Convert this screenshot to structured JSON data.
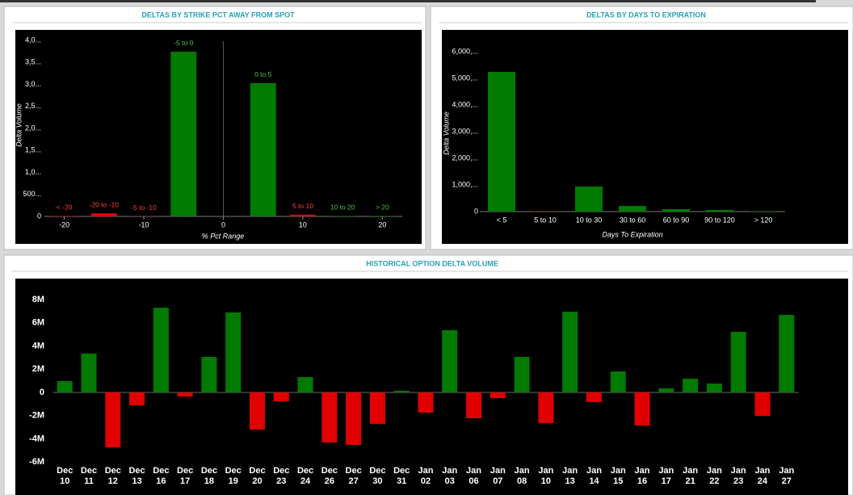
{
  "chart_data": [
    {
      "type": "bar",
      "title": "DELTAS BY STRIKE PCT AWAY FROM SPOT",
      "x": [
        -20,
        -15,
        -10,
        -5,
        5,
        10,
        15,
        20
      ],
      "labels": [
        "< -20",
        "-20 to -10",
        "-5 to -10",
        "-5 to 0",
        "0 to 5",
        "5 to 10",
        "10 to 20",
        "> 20"
      ],
      "values": [
        10,
        70,
        5,
        3743,
        3028,
        40,
        10,
        10
      ],
      "colors": [
        "#e00000",
        "#e00000",
        "#e00000",
        "#007a00",
        "#007a00",
        "#e00000",
        "#007a00",
        "#007a00"
      ],
      "xlim": [
        -22.5,
        22.5
      ],
      "xticks": [
        -20,
        -10,
        0,
        10,
        20
      ],
      "ylim": [
        0,
        4200
      ],
      "yticks": [
        0,
        {
          "value": 500,
          "label": "500..."
        },
        {
          "value": 1000,
          "label": "1,0..."
        },
        {
          "value": 1500,
          "label": "1,5..."
        },
        {
          "value": 2000,
          "label": "2,0..."
        },
        {
          "value": 2500,
          "label": "2,5..."
        },
        {
          "value": 3000,
          "label": "3,0..."
        },
        {
          "value": 3500,
          "label": "3,5..."
        },
        {
          "value": 4000,
          "label": "4,0..."
        }
      ],
      "xlabel": "% Pct Range",
      "ylabel": "Delta Volume"
    },
    {
      "type": "bar",
      "title": "DELTAS BY DAYS TO EXPIRATION",
      "categories": [
        "< 5",
        "5 to 10",
        "10 to 30",
        "30 to 60",
        "60 to 90",
        "90 to 120",
        "> 120"
      ],
      "values": [
        5240,
        10,
        940,
        210,
        90,
        60,
        15
      ],
      "colors": [
        "#007a00",
        "#e00000",
        "#007a00",
        "#007a00",
        "#007a00",
        "#007a00",
        "#007a00"
      ],
      "ylim": [
        0,
        6300
      ],
      "yticks": [
        0,
        {
          "value": 1000,
          "label": "1,000,..."
        },
        {
          "value": 2000,
          "label": "2,000,..."
        },
        {
          "value": 3000,
          "label": "3,000,..."
        },
        {
          "value": 4000,
          "label": "4,000,..."
        },
        {
          "value": 5000,
          "label": "5,000,..."
        },
        {
          "value": 6000,
          "label": "6,000,..."
        }
      ],
      "xlabel": "Days To Expiration",
      "ylabel": "Delta Volume"
    },
    {
      "type": "bar",
      "title": "HISTORICAL OPTION DELTA VOLUME",
      "categories": [
        "Dec 10",
        "Dec 11",
        "Dec 12",
        "Dec 13",
        "Dec 16",
        "Dec 17",
        "Dec 18",
        "Dec 19",
        "Dec 20",
        "Dec 23",
        "Dec 24",
        "Dec 26",
        "Dec 27",
        "Dec 30",
        "Dec 31",
        "Jan 02",
        "Jan 03",
        "Jan 06",
        "Jan 07",
        "Jan 08",
        "Jan 10",
        "Jan 13",
        "Jan 14",
        "Jan 15",
        "Jan 16",
        "Jan 17",
        "Jan 21",
        "Jan 22",
        "Jan 23",
        "Jan 24",
        "Jan 27"
      ],
      "values": [
        970000,
        3350000,
        -4730000,
        -1110000,
        7300000,
        -350000,
        3060000,
        6890000,
        -3200000,
        -770000,
        1320000,
        -4310000,
        -4520000,
        -2710000,
        140000,
        -1740000,
        5360000,
        -2230000,
        -490000,
        3060000,
        -2640000,
        6960000,
        -830000,
        1810000,
        -2850000,
        350000,
        1180000,
        770000,
        5220000,
        -2020000,
        6680000
      ],
      "positive_color": "#007a00",
      "negative_color": "#e00000",
      "ylim": [
        -6500000,
        9500000
      ],
      "yticks": [
        {
          "value": -6000000,
          "label": "-6M"
        },
        {
          "value": -4000000,
          "label": "-4M"
        },
        {
          "value": -2000000,
          "label": "-2M"
        },
        0,
        {
          "value": 2000000,
          "label": "2M"
        },
        {
          "value": 4000000,
          "label": "4M"
        },
        {
          "value": 6000000,
          "label": "6M"
        },
        {
          "value": 8000000,
          "label": "8M"
        }
      ]
    }
  ]
}
